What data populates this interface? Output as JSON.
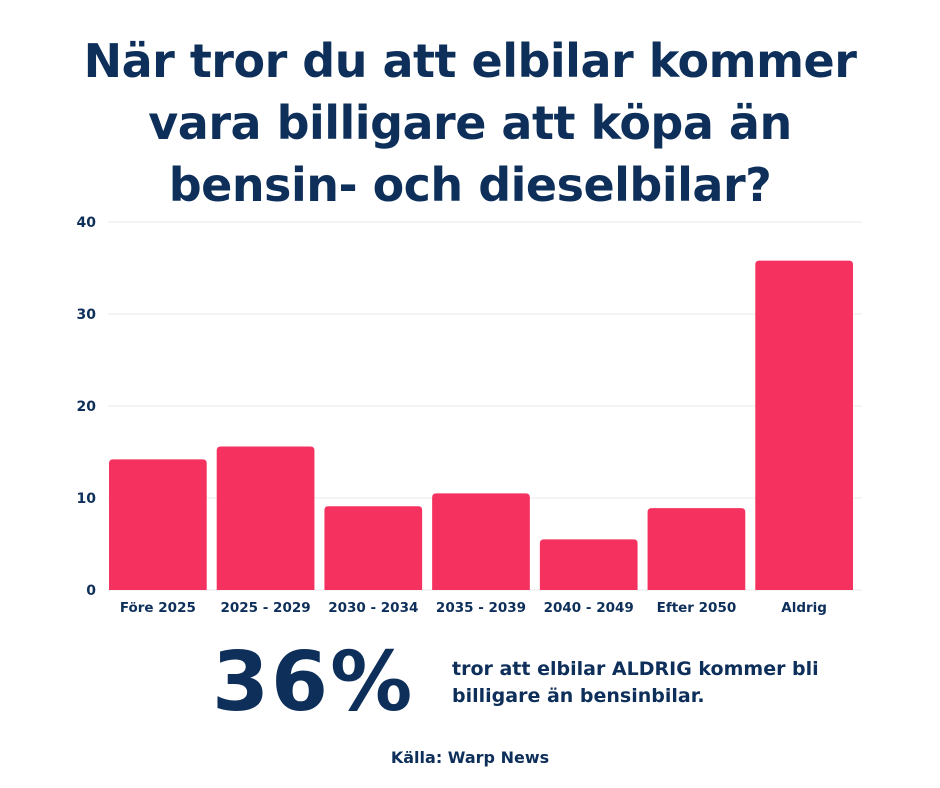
{
  "chart_data": {
    "type": "bar",
    "title": "När tror du att elbilar kommer vara billigare att köpa än bensin- och dieselbilar?",
    "categories": [
      "Före 2025",
      "2025 - 2029",
      "2030 - 2034",
      "2035 - 2039",
      "2040 - 2049",
      "Efter 2050",
      "Aldrig"
    ],
    "values": [
      14.2,
      15.6,
      9.1,
      10.5,
      5.5,
      8.9,
      35.8
    ],
    "ylim": [
      0,
      40
    ],
    "yticks": [
      0,
      10,
      20,
      30,
      40
    ],
    "xlabel": "",
    "ylabel": "",
    "grid": true,
    "bar_color": "#f5325f",
    "grid_color": "#e8e8e8"
  },
  "callout": {
    "percent": "36%",
    "text": "tror att elbilar ALDRIG kommer bli billigare än bensinbilar."
  },
  "source": "Källa: Warp News",
  "colors": {
    "text": "#0d2f5a",
    "accent": "#f5325f"
  }
}
